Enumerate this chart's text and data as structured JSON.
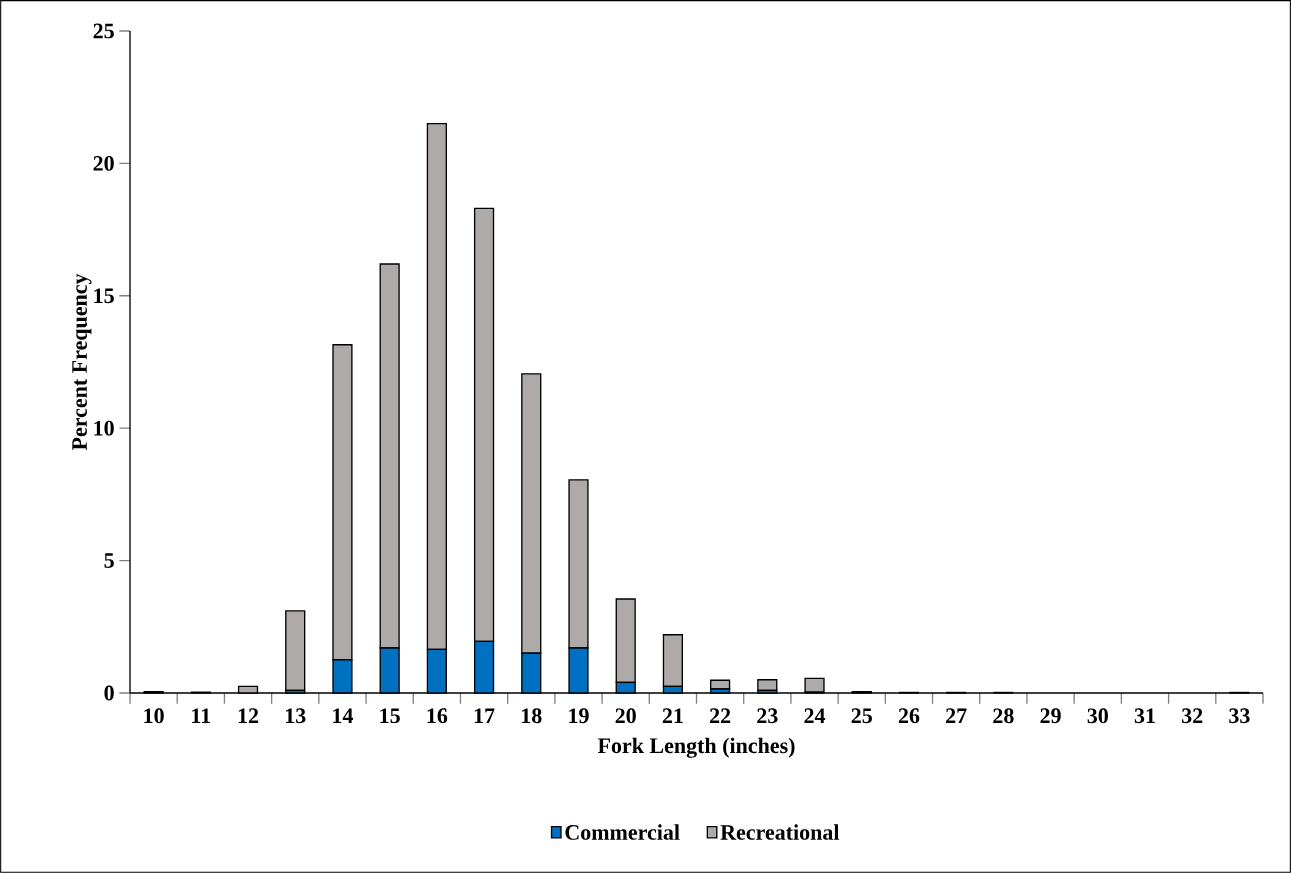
{
  "chart_data": {
    "type": "bar",
    "stacked": true,
    "xlabel": "Fork Length (inches)",
    "ylabel": "Percent Frequency",
    "categories": [
      "10",
      "11",
      "12",
      "13",
      "14",
      "15",
      "16",
      "17",
      "18",
      "19",
      "20",
      "21",
      "22",
      "23",
      "24",
      "25",
      "26",
      "27",
      "28",
      "29",
      "30",
      "31",
      "32",
      "33"
    ],
    "series": [
      {
        "name": "Commercial",
        "color": "#0070c0",
        "values": [
          0.05,
          0,
          0,
          0.1,
          1.25,
          1.7,
          1.65,
          1.95,
          1.5,
          1.7,
          0.4,
          0.25,
          0.15,
          0.1,
          0.03,
          0.03,
          0,
          0,
          0,
          0,
          0,
          0,
          0,
          0
        ]
      },
      {
        "name": "Recreational",
        "color": "#aeaaaa",
        "values": [
          null,
          0.03,
          0.25,
          3.0,
          11.9,
          14.5,
          19.85,
          16.35,
          10.55,
          6.35,
          3.15,
          1.95,
          0.33,
          0.4,
          0.52,
          0.02,
          0.02,
          0.02,
          0.02,
          0,
          0,
          0,
          0,
          0.02
        ]
      }
    ],
    "ylim": [
      0,
      25
    ],
    "yticks": [
      0,
      5,
      10,
      15,
      20,
      25
    ],
    "grid": false,
    "legend": "bottom"
  }
}
